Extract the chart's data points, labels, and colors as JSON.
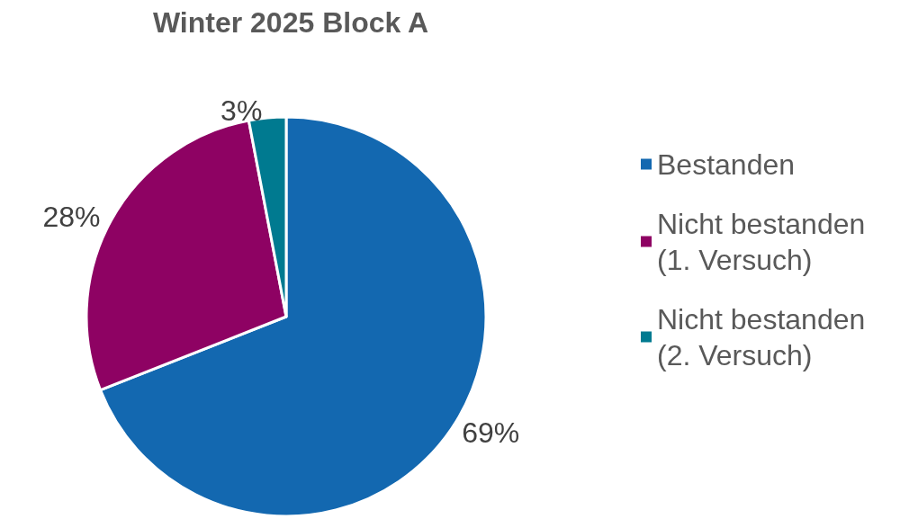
{
  "chart_data": {
    "type": "pie",
    "title": "Winter 2025 Block A",
    "categories": [
      "Bestanden",
      "Nicht bestanden (1. Versuch)",
      "Nicht bestanden (2. Versuch)"
    ],
    "values": [
      69,
      28,
      3
    ],
    "colors": [
      "#1368b0",
      "#8e0263",
      "#007a90"
    ],
    "value_labels": [
      "69%",
      "28%",
      "3%"
    ],
    "legend": "right"
  }
}
